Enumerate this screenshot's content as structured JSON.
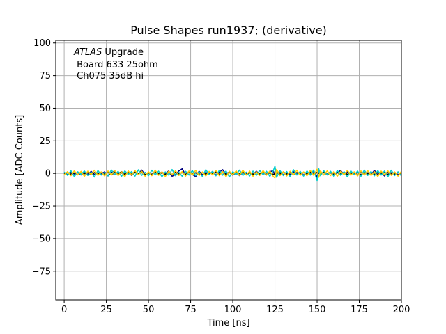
{
  "chart_data": {
    "type": "line",
    "title": "Pulse Shapes run1937; (derivative)",
    "xlabel": "Time [ns]",
    "ylabel": "Amplitude [ADC Counts]",
    "xlim": [
      -5,
      200
    ],
    "ylim": [
      -97,
      102
    ],
    "xticks": [
      0,
      25,
      50,
      75,
      100,
      125,
      150,
      175,
      200
    ],
    "yticks": [
      100,
      75,
      50,
      25,
      0,
      -25,
      -50,
      -75
    ],
    "grid": true,
    "annotation": {
      "atlas": "ATLAS",
      "line1_rest": " Upgrade",
      "line2": " Board 633 25ohm",
      "line3": " Ch075 35dB hi"
    },
    "series": [
      {
        "color": "#000080",
        "x": [
          0,
          2,
          4,
          6,
          8,
          10,
          12,
          14,
          16,
          18,
          20,
          22,
          24,
          26,
          28,
          30,
          32,
          34,
          36,
          38,
          40,
          42,
          44,
          46,
          48,
          50,
          52,
          54,
          56,
          58,
          60,
          62,
          64,
          66,
          68,
          70,
          72,
          74,
          76,
          78,
          80,
          82,
          84,
          86,
          88,
          90,
          92,
          94,
          96,
          98,
          100,
          102,
          104,
          106,
          108,
          110,
          112,
          114,
          116,
          118,
          120,
          122,
          124,
          125,
          126,
          128,
          130,
          132,
          134,
          136,
          138,
          140,
          142,
          144,
          146,
          148,
          150,
          151,
          152,
          154,
          156,
          158,
          160,
          162,
          164,
          166,
          168,
          170,
          172,
          174,
          176,
          178,
          180,
          182,
          184,
          186,
          188,
          190,
          192,
          194,
          196,
          198,
          200
        ],
        "y": [
          0.5,
          -1,
          1,
          -0.5,
          0.8,
          -1.2,
          0.6,
          -0.8,
          1.5,
          -1,
          0.4,
          -0.6,
          1.2,
          -2,
          0.7,
          1.8,
          -1.5,
          0.5,
          -0.8,
          1.1,
          -1.6,
          0.9,
          -0.4,
          2.5,
          -1.2,
          0.6,
          -0.9,
          1.3,
          -1.1,
          0.5,
          -0.7,
          1.9,
          -2.2,
          -1,
          1.8,
          3.5,
          -1.2,
          1.5,
          -0.8,
          -2.5,
          1.6,
          -1.1,
          0.7,
          -0.5,
          1.4,
          -1.3,
          0.9,
          2.8,
          -0.6,
          1.2,
          -1.4,
          0.8,
          -1.7,
          1.1,
          -0.5,
          0.9,
          -1.2,
          1.6,
          -0.8,
          0.7,
          -1.1,
          1.3,
          2,
          -1.5,
          1,
          0.8,
          -1.1,
          0.6,
          -0.9,
          1.2,
          -0.7,
          0.9,
          -1.3,
          0.5,
          -0.8,
          1.7,
          -3,
          2.5,
          -1.2,
          1.1,
          -0.7,
          0.9,
          -1.4,
          0.6,
          2.1,
          -0.9,
          1.2,
          -0.6,
          0.8,
          -1.5,
          1.1,
          -0.7,
          0.5,
          -1,
          2.3,
          -1.3,
          0.8,
          -2,
          1.2,
          -0.6,
          0.9,
          -1.1,
          0.7
        ]
      },
      {
        "color": "#000000",
        "x": [
          0,
          2,
          4,
          6,
          8,
          10,
          12,
          14,
          16,
          18,
          20,
          22,
          24,
          26,
          28,
          30,
          32,
          34,
          36,
          38,
          40,
          42,
          44,
          46,
          48,
          50,
          52,
          54,
          56,
          58,
          60,
          62,
          64,
          66,
          68,
          70,
          72,
          74,
          76,
          78,
          80,
          82,
          84,
          86,
          88,
          90,
          92,
          94,
          96,
          98,
          100,
          102,
          104,
          106,
          108,
          110,
          112,
          114,
          116,
          118,
          120,
          122,
          124,
          126,
          128,
          130,
          132,
          134,
          136,
          138,
          140,
          142,
          144,
          146,
          148,
          150,
          152,
          154,
          156,
          158,
          160,
          162,
          164,
          166,
          168,
          170,
          172,
          174,
          176,
          178,
          180,
          182,
          184,
          186,
          188,
          190,
          192,
          194,
          196,
          198,
          200
        ],
        "y": [
          -0.5,
          0.8,
          -0.6,
          0.4,
          -1,
          0.9,
          -0.3,
          0.7,
          -1.1,
          0.6,
          -0.8,
          1,
          -0.5,
          0.9,
          -1.2,
          0.7,
          -0.4,
          1.3,
          -0.9,
          0.5,
          -0.7,
          1.1,
          -0.6,
          0.8,
          -1,
          0.4,
          -0.9,
          0.7,
          -0.5,
          1,
          -0.8,
          0.6,
          -1.1,
          0.9,
          -0.4,
          0.7,
          -0.9,
          1.2,
          -0.6,
          0.5,
          -1,
          0.8,
          -0.7,
          0.9,
          -0.5,
          1.1,
          -0.8,
          0.6,
          -0.9,
          0.7,
          -0.4,
          1,
          -0.6,
          0.8,
          -1.1,
          0.5,
          -0.7,
          0.9,
          -0.6,
          1.2,
          -0.8,
          0.5,
          -0.9,
          0.7,
          -0.6,
          1,
          -0.5,
          0.8,
          -1,
          0.6,
          -0.7,
          0.9,
          -0.5,
          1.1,
          -0.8,
          0.7,
          -0.6,
          0.9,
          -1,
          0.5,
          -0.8,
          0.7,
          -0.6,
          1,
          -0.9,
          0.5,
          -0.7,
          0.8,
          -1.1,
          0.6,
          -0.5,
          0.9,
          -0.8,
          0.7,
          -0.6,
          1,
          -0.9,
          0.5,
          -0.7,
          0.8,
          -0.6
        ]
      },
      {
        "color": "#00cccc",
        "x": [
          0,
          2,
          4,
          6,
          8,
          10,
          12,
          14,
          16,
          18,
          20,
          22,
          24,
          26,
          28,
          30,
          32,
          34,
          36,
          38,
          40,
          42,
          44,
          46,
          48,
          50,
          52,
          54,
          56,
          58,
          60,
          62,
          64,
          66,
          68,
          70,
          72,
          74,
          76,
          78,
          80,
          82,
          84,
          86,
          88,
          90,
          92,
          94,
          96,
          98,
          100,
          102,
          104,
          106,
          108,
          110,
          112,
          114,
          116,
          118,
          120,
          122,
          124,
          125,
          126,
          128,
          130,
          132,
          134,
          136,
          138,
          140,
          142,
          144,
          146,
          148,
          150,
          151,
          152,
          154,
          156,
          158,
          160,
          162,
          164,
          166,
          168,
          170,
          172,
          174,
          176,
          178,
          180,
          182,
          184,
          186,
          188,
          190,
          192,
          194,
          196,
          198,
          200
        ],
        "y": [
          1,
          -1.5,
          2,
          -2.5,
          1.2,
          -0.8,
          1.8,
          -1.6,
          0.9,
          -2.8,
          2.2,
          -1.3,
          0.7,
          -1.9,
          2.6,
          -1.1,
          1.5,
          -2.3,
          1.9,
          -0.9,
          1.4,
          -2.1,
          2.7,
          -1.5,
          0.8,
          -1.8,
          2.4,
          -1.2,
          1.7,
          -2.6,
          1.1,
          -1.4,
          2.9,
          -1.8,
          0.9,
          -2.2,
          1.6,
          -1.3,
          2.1,
          -1.7,
          1.2,
          -2.4,
          2.8,
          -1,
          1.5,
          -1.9,
          2.3,
          -1.4,
          1.8,
          -2.7,
          1.3,
          -1.1,
          2.5,
          -1.6,
          0.9,
          -2,
          1.7,
          -1.5,
          2.2,
          -1.2,
          1.6,
          -2.3,
          1.9,
          5.5,
          -3,
          2.1,
          -1.7,
          1.4,
          -2.5,
          2.8,
          -1.3,
          1.5,
          -2.1,
          1.8,
          -1.4,
          2.6,
          -5.5,
          3.5,
          -1.8,
          2,
          -1.2,
          1.6,
          -2.4,
          2.2,
          -1.5,
          1.3,
          -2.7,
          1.9,
          -1.1,
          1.7,
          -2.2,
          2.5,
          -1.6,
          1.4,
          -1.9,
          2.1,
          -1.3,
          1.8,
          -2.6,
          2.4,
          -1.7,
          1.2,
          -2
        ]
      },
      {
        "color": "#ffcc00",
        "x": [
          0,
          2,
          4,
          6,
          8,
          10,
          12,
          14,
          16,
          18,
          20,
          22,
          24,
          26,
          28,
          30,
          32,
          34,
          36,
          38,
          40,
          42,
          44,
          46,
          48,
          50,
          52,
          54,
          56,
          58,
          60,
          62,
          64,
          66,
          68,
          70,
          72,
          74,
          76,
          78,
          80,
          82,
          84,
          86,
          88,
          90,
          92,
          94,
          96,
          98,
          100,
          102,
          104,
          106,
          108,
          110,
          112,
          114,
          116,
          118,
          120,
          122,
          124,
          125,
          126,
          128,
          130,
          132,
          134,
          136,
          138,
          140,
          142,
          144,
          146,
          148,
          150,
          151,
          152,
          154,
          156,
          158,
          160,
          162,
          164,
          166,
          168,
          170,
          172,
          174,
          176,
          178,
          180,
          182,
          184,
          186,
          188,
          190,
          192,
          194,
          196,
          198,
          200
        ],
        "y": [
          -1,
          1.3,
          -1.8,
          2,
          -1.2,
          1.5,
          -2.3,
          1.7,
          -1,
          2.4,
          -1.6,
          1.1,
          -2,
          1.8,
          -1.3,
          2.2,
          -1.7,
          1.2,
          -2.5,
          1.9,
          -1.4,
          2.1,
          -1.1,
          1.6,
          -2.2,
          1.3,
          -1.8,
          2.5,
          -1.5,
          1.2,
          -2.4,
          1.7,
          -1.1,
          2,
          -1.6,
          1.4,
          -2.1,
          1.8,
          -1.3,
          2.3,
          -1.7,
          1.1,
          -2,
          1.5,
          -1.2,
          2.2,
          -1.8,
          1.4,
          -2.5,
          1.6,
          -1.1,
          1.9,
          -1.5,
          2.4,
          -1.3,
          1.7,
          -2.2,
          1.2,
          -1.6,
          2.1,
          -1.4,
          1.8,
          -2.3,
          -3.5,
          3,
          -1.7,
          1.3,
          -2,
          1.6,
          -1.2,
          2.4,
          -1.5,
          1.1,
          -1.9,
          2.2,
          -1.6,
          3.2,
          -3,
          1.8,
          -1.3,
          2,
          -1.7,
          1.4,
          -2.2,
          1.6,
          -1.1,
          2.3,
          -1.5,
          1.2,
          -2,
          1.8,
          -1.4,
          2.1,
          -1.6,
          1.3,
          -2.4,
          1.7,
          -1.2,
          1.9,
          -1.5,
          1.1,
          -2.1,
          1.6
        ]
      }
    ]
  }
}
